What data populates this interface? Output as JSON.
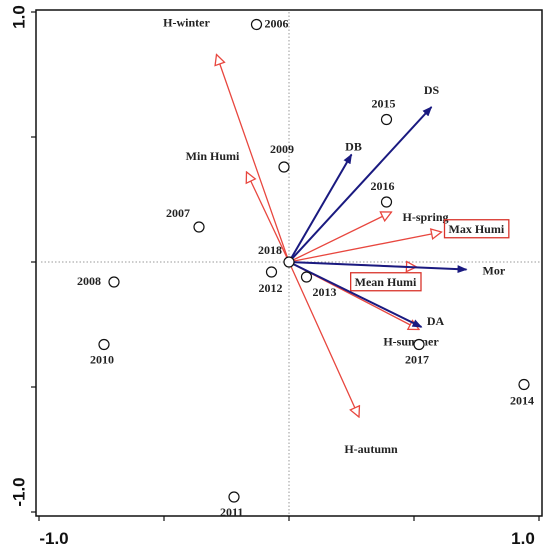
{
  "chart_data": {
    "type": "scatter",
    "xlim": [
      -1.0,
      1.0
    ],
    "ylim": [
      -1.0,
      1.0
    ],
    "tick_labels": [
      {
        "axis": "x",
        "value": -1.0,
        "text": "-1.0"
      },
      {
        "axis": "x",
        "value": 1.0,
        "text": "1.0"
      },
      {
        "axis": "y",
        "value": -1.0,
        "text": "-1.0"
      },
      {
        "axis": "y",
        "value": 1.0,
        "text": "1.0"
      }
    ],
    "points": [
      {
        "label": "2006",
        "x": -0.13,
        "y": 0.95
      },
      {
        "label": "2007",
        "x": -0.36,
        "y": 0.14
      },
      {
        "label": "2008",
        "x": -0.7,
        "y": -0.08
      },
      {
        "label": "2009",
        "x": -0.02,
        "y": 0.38
      },
      {
        "label": "2010",
        "x": -0.74,
        "y": -0.33
      },
      {
        "label": "2011",
        "x": -0.22,
        "y": -0.94
      },
      {
        "label": "2012",
        "x": -0.07,
        "y": -0.04
      },
      {
        "label": "2013",
        "x": 0.07,
        "y": -0.06
      },
      {
        "label": "2014",
        "x": 0.94,
        "y": -0.49
      },
      {
        "label": "2015",
        "x": 0.39,
        "y": 0.57
      },
      {
        "label": "2016",
        "x": 0.39,
        "y": 0.24
      },
      {
        "label": "2017",
        "x": 0.52,
        "y": -0.33
      },
      {
        "label": "2018",
        "x": 0.0,
        "y": 0.0
      }
    ],
    "response_arrows": [
      {
        "label": "DS",
        "x": 0.57,
        "y": 0.62
      },
      {
        "label": "DB",
        "x": 0.25,
        "y": 0.43
      },
      {
        "label": "Mor",
        "x": 0.71,
        "y": -0.03
      },
      {
        "label": "DA",
        "x": 0.53,
        "y": -0.26
      }
    ],
    "explanatory_arrows": [
      {
        "label": "H-winter",
        "x": -0.29,
        "y": 0.83,
        "boxed": false
      },
      {
        "label": "Min Humi",
        "x": -0.17,
        "y": 0.36,
        "boxed": false
      },
      {
        "label": "H-spring",
        "x": 0.41,
        "y": 0.2,
        "boxed": false
      },
      {
        "label": "Max Humi",
        "x": 0.61,
        "y": 0.12,
        "boxed": true
      },
      {
        "label": "Mean Humi",
        "x": 0.51,
        "y": -0.02,
        "boxed": true
      },
      {
        "label": "H-summer",
        "x": 0.52,
        "y": -0.27,
        "boxed": false
      },
      {
        "label": "H-autumn",
        "x": 0.28,
        "y": -0.62,
        "boxed": false
      }
    ],
    "grid": false,
    "colors": {
      "response": "#1a1a80",
      "explanatory": "#e8473f",
      "box": "#d9342b",
      "points": "#111111",
      "zero_lines": "#9a9a9a",
      "frame": "#111111"
    }
  }
}
